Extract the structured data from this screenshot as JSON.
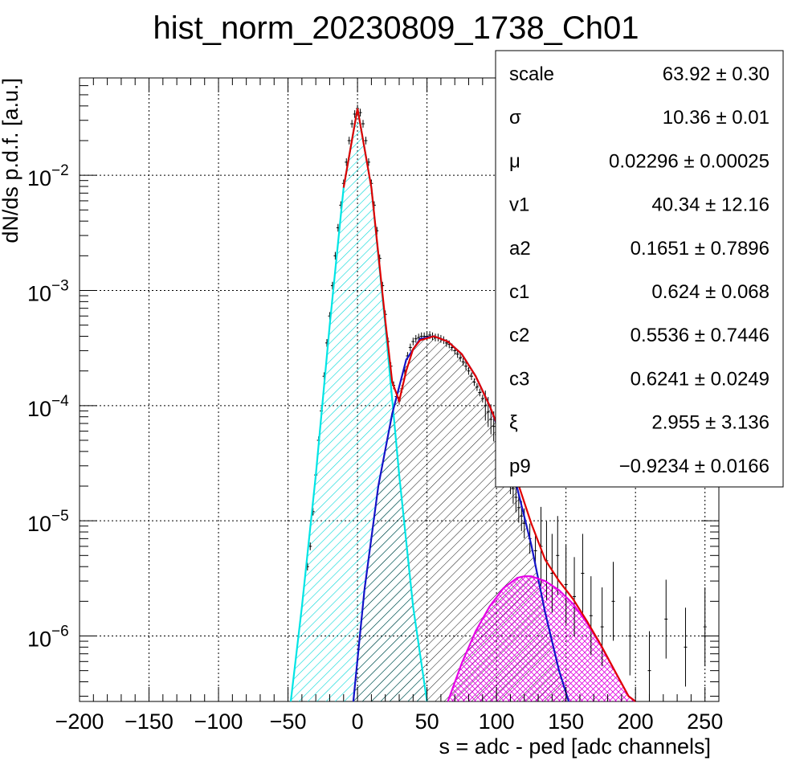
{
  "chart_data": {
    "type": "line",
    "title": "hist_norm_20230809_1738_Ch01",
    "xlabel": "s = adc - ped [adc channels]",
    "ylabel": "dN/ds p.d.f. [a.u.]",
    "xlim": [
      -200,
      260
    ],
    "ylim": [
      2.7e-07,
      0.07
    ],
    "y_scale": "log",
    "grid": true,
    "x_ticks": [
      -200,
      -150,
      -100,
      -50,
      0,
      50,
      100,
      150,
      200,
      250
    ],
    "x_tick_labels": [
      "−200",
      "−150",
      "−100",
      "−50",
      "0",
      "50",
      "100",
      "150",
      "200",
      "250"
    ],
    "y_ticks": [
      {
        "value": 0.01,
        "base": "10",
        "exp": "−2"
      },
      {
        "value": 0.001,
        "base": "10",
        "exp": "−3"
      },
      {
        "value": 0.0001,
        "base": "10",
        "exp": "−4"
      },
      {
        "value": 1e-05,
        "base": "10",
        "exp": "−5"
      },
      {
        "value": 1e-06,
        "base": "10",
        "exp": "−6"
      }
    ],
    "series": [
      {
        "role": "pedestal-gaussian",
        "color": "#00e5e5",
        "fill": "cyan-hatch",
        "x": [
          -48,
          -40,
          -30,
          -20,
          -10,
          0,
          10,
          20,
          30,
          40,
          50
        ],
        "y": [
          2.7e-07,
          1.8e-06,
          2.5e-05,
          0.0005,
          0.0078,
          0.038,
          0.0078,
          0.0005,
          2.5e-05,
          1.8e-06,
          2.7e-07
        ]
      },
      {
        "role": "single-photoelectron",
        "color": "#1414c8",
        "fill": "black-hatch",
        "x": [
          -3,
          5,
          15,
          25,
          35,
          45,
          55,
          65,
          75,
          85,
          95,
          105,
          115,
          125,
          135,
          145,
          152
        ],
        "y": [
          2.7e-07,
          2.5e-06,
          2e-05,
          8.5e-05,
          0.00025,
          0.00038,
          0.0004,
          0.00036,
          0.00028,
          0.00018,
          0.0001,
          4.8e-05,
          1.9e-05,
          6.2e-06,
          1.6e-06,
          5e-07,
          2.7e-07
        ]
      },
      {
        "role": "double-photoelectron",
        "color": "#e600e6",
        "fill": "magenta-crosshatch",
        "x": [
          65,
          75,
          85,
          95,
          105,
          115,
          120,
          125,
          135,
          145,
          155,
          165,
          175,
          185,
          195,
          200
        ],
        "y": [
          2.7e-07,
          5.8e-07,
          1.1e-06,
          1.8e-06,
          2.6e-06,
          3.2e-06,
          3.3e-06,
          3.3e-06,
          3e-06,
          2.5e-06,
          1.9e-06,
          1.3e-06,
          8.3e-07,
          5e-07,
          3e-07,
          2.7e-07
        ]
      },
      {
        "role": "total-fit",
        "color": "#e00000",
        "x": [
          -10,
          0,
          10,
          20,
          25,
          30,
          35,
          40,
          45,
          55,
          65,
          75,
          85,
          95,
          105,
          115,
          125,
          135,
          145,
          155,
          165,
          175,
          185,
          195,
          200
        ],
        "y": [
          0.0078,
          0.038,
          0.0078,
          0.00055,
          0.00016,
          0.00011,
          0.0002,
          0.00031,
          0.00037,
          0.0004,
          0.00036,
          0.00028,
          0.00018,
          0.0001,
          5e-05,
          2.2e-05,
          9.5e-06,
          4.6e-06,
          3e-06,
          2.1e-06,
          1.35e-06,
          8.4e-07,
          5e-07,
          3e-07,
          2.7e-07
        ]
      }
    ],
    "histogram": {
      "role": "data-points",
      "color": "#000000",
      "x": [
        -36,
        -34,
        -32,
        -30,
        -28,
        -26,
        -24,
        -22,
        -20,
        -18,
        -16,
        -14,
        -12,
        -10,
        -8,
        -6,
        -4,
        -2,
        0,
        2,
        4,
        6,
        8,
        10,
        12,
        14,
        16,
        18,
        20,
        22,
        24,
        26,
        28,
        30,
        32,
        34,
        36,
        38,
        40,
        42,
        44,
        46,
        48,
        50,
        52,
        54,
        56,
        58,
        60,
        62,
        64,
        66,
        68,
        70,
        72,
        74,
        76,
        78,
        80,
        82,
        84,
        86,
        88,
        90,
        92,
        94,
        96,
        98,
        100,
        102,
        104,
        106,
        108,
        110,
        112,
        114,
        116,
        118,
        120,
        124,
        128,
        132,
        136,
        140,
        144,
        150,
        156,
        162,
        168,
        176,
        184,
        196,
        210,
        222,
        236,
        250
      ],
      "y": [
        4e-06,
        6e-06,
        1.2e-05,
        2.5e-05,
        5e-05,
        9e-05,
        0.00018,
        0.00035,
        0.0006,
        0.0011,
        0.002,
        0.0035,
        0.0055,
        0.0085,
        0.013,
        0.02,
        0.028,
        0.034,
        0.038,
        0.035,
        0.028,
        0.02,
        0.013,
        0.0085,
        0.0055,
        0.0033,
        0.0019,
        0.0011,
        0.00062,
        0.00036,
        0.00022,
        0.00015,
        0.00012,
        0.00011,
        0.00014,
        0.0002,
        0.00027,
        0.00032,
        0.00036,
        0.00038,
        0.00039,
        0.0004,
        0.0004,
        0.0004,
        0.00041,
        0.0004,
        0.00039,
        0.00039,
        0.00038,
        0.00037,
        0.00035,
        0.00034,
        0.00032,
        0.0003,
        0.00028,
        0.00026,
        0.00024,
        0.00022,
        0.0002,
        0.00018,
        0.00016,
        0.000145,
        0.00013,
        0.000115,
        0.0001,
        8.8e-05,
        7.6e-05,
        6.6e-05,
        5.6e-05,
        4.8e-05,
        4e-05,
        3.3e-05,
        2.8e-05,
        2.3e-05,
        1.9e-05,
        1.6e-05,
        1.3e-05,
        1.1e-05,
        9.5e-06,
        7e-06,
        5.5e-06,
        6e-06,
        4.5e-06,
        3.5e-06,
        5e-06,
        2.8e-06,
        2.2e-06,
        3.5e-06,
        1.5e-06,
        1.2e-06,
        2e-06,
        1e-06,
        5e-07,
        1.4e-06,
        8e-07,
        1.2e-06
      ]
    }
  },
  "stats": {
    "rows": [
      {
        "name": "scale",
        "value": "63.92 ± 0.30"
      },
      {
        "name": "σ",
        "value": "10.36 ± 0.01"
      },
      {
        "name": "μ",
        "value": "0.02296 ± 0.00025"
      },
      {
        "name": "v1",
        "value": "40.34 ± 12.16"
      },
      {
        "name": "a2",
        "value": "0.1651 ± 0.7896"
      },
      {
        "name": "c1",
        "value": "0.624 ± 0.068"
      },
      {
        "name": "c2",
        "value": "0.5536 ± 0.7446"
      },
      {
        "name": "c3",
        "value": "0.6241 ± 0.0249"
      },
      {
        "name": "ξ",
        "value": "2.955 ± 3.136"
      },
      {
        "name": "p9",
        "value": "−0.9234 ± 0.0166"
      }
    ]
  }
}
